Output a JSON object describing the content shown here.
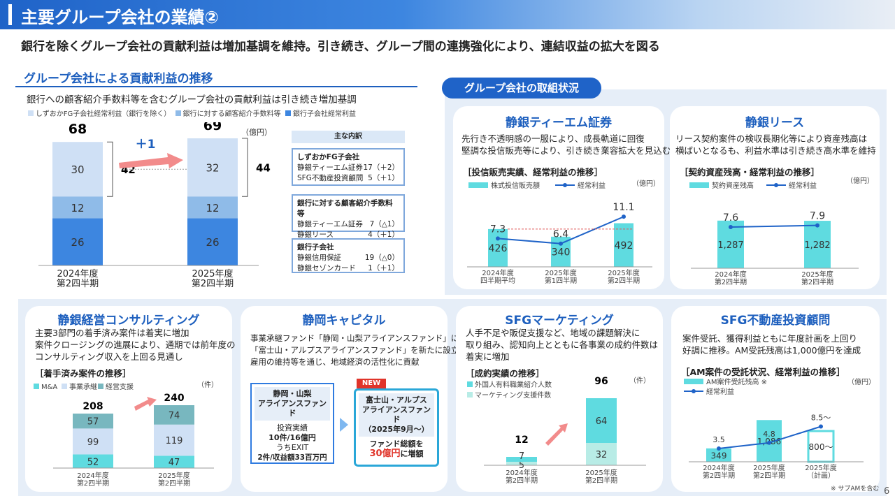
{
  "page": {
    "title": "主要グループ会社の業績②",
    "subtitle": "銀行を除くグループ会社の貢献利益は増加基調を維持。引き続き、グループ間の連携強化により、連結収益の拡大を図る",
    "page_number": "6"
  },
  "left": {
    "heading": "グループ会社による貢献利益の推移",
    "note": "銀行への顧客紹介手数料等を含むグループ会社の貢献利益は引き続き増加基調",
    "legend": [
      "しずおかFG子会社経常利益（銀行を除く）",
      "銀行に対する顧客紹介手数料等",
      "銀行子会社経常利益"
    ],
    "unit": "（億円）",
    "delta": "＋1",
    "breakdown_header": "主な内訳",
    "boxes": [
      {
        "title": "しずおかFG子会社",
        "rows": [
          [
            "静銀ティーエム証券",
            "17（＋2）"
          ],
          [
            "SFG不動産投資顧問",
            "5（＋1）"
          ]
        ]
      },
      {
        "title": "銀行に対する顧客紹介手数料等",
        "rows": [
          [
            "静銀ティーエム証券",
            "7（△1）"
          ],
          [
            "静銀リース",
            "4（＋1）"
          ]
        ]
      },
      {
        "title": "銀行子会社",
        "rows": [
          [
            "静銀信用保証",
            "19（△0）"
          ],
          [
            "静銀セゾンカード",
            "1（＋1）"
          ]
        ]
      }
    ]
  },
  "right_tag": "グループ会社の取組状況",
  "cards": {
    "tm": {
      "title": "静銀ティーエム証券",
      "text": [
        "先行き不透明感の一服により、成長軌道に回復",
        "堅調な投信販売等により、引き続き業容拡大を見込む"
      ],
      "chart_label": "［投信販売実績、経常利益の推移］",
      "unit": "（億円）",
      "legend": [
        "株式投信販売額",
        "経常利益"
      ]
    },
    "lease": {
      "title": "静銀リース",
      "text": [
        "リース契約案件の検収長期化等により資産残高は",
        "横ばいとなるも、利益水準は引き続き高水準を維持"
      ],
      "chart_label": "［契約資産残高・経常利益の推移］",
      "unit": "（億円）",
      "legend": [
        "契約資産残高",
        "経常利益"
      ]
    },
    "consult": {
      "title": "静銀経営コンサルティング",
      "text": [
        "主要3部門の着手済み案件は着実に増加",
        "案件クロージングの進展により、通期では前年度の",
        "コンサルティング収入を上回る見通し"
      ],
      "chart_label": "［着手済み案件の推移］",
      "unit": "（件）",
      "legend": [
        "M&A",
        "事業承継",
        "経営支援"
      ]
    },
    "capital": {
      "title": "静岡キャピタル",
      "text": [
        "事業承継ファンド「静岡・山梨アライアンスファンド」に続き",
        "「富士山・アルプスアライアンスファンド」を新たに設立",
        "雇用の維持等を通じ、地域経済の活性化に貢献"
      ],
      "fund1": {
        "name": "静岡・山梨\nアライアンスファンド",
        "l1": "投資実績",
        "l2": "10件/16億円",
        "l3": "うちEXIT",
        "l4": "2件/収益額33百万円"
      },
      "new_badge": "NEW",
      "fund2": {
        "name": "富士山・アルプス\nアライアンスファンド\n（2025年9月～）",
        "l1": "ファンド総額を",
        "l2a": "30億円",
        "l2b": "に増額"
      }
    },
    "mkt": {
      "title": "SFGマーケティング",
      "text": [
        "人手不足や販促支援など、地域の課題解決に",
        "取り組み、認知向上とともに各事業の成約件数は",
        "着実に増加"
      ],
      "chart_label": "［成約実績の推移］",
      "unit": "（件）",
      "legend": [
        "外国人有料職業紹介人数",
        "マーケティング支援件数"
      ]
    },
    "re": {
      "title": "SFG不動産投資顧問",
      "text": [
        "案件受託、獲得利益ともに年度計画を上回り",
        "好調に推移。AM受託残高は1,000億円を達成"
      ],
      "chart_label": "［AM案件の受託状況、経常利益の推移］",
      "unit": "（億円）",
      "legend": [
        "AM案件受託残高 ※",
        "経常利益"
      ],
      "footnote": "※ サブAMを含む"
    }
  },
  "chart_data": [
    {
      "id": "group",
      "type": "bar",
      "categories": [
        "2024年度\n第2四半期",
        "2025年度\n第2四半期"
      ],
      "series": [
        {
          "name": "銀行子会社経常利益",
          "values": [
            26,
            26
          ]
        },
        {
          "name": "銀行に対する顧客紹介手数料等",
          "values": [
            12,
            12
          ]
        },
        {
          "name": "しずおかFG子会社経常利益（銀行を除く）",
          "values": [
            30,
            32
          ]
        }
      ],
      "totals": [
        68,
        69
      ],
      "bracket": [
        42,
        44
      ]
    },
    {
      "id": "tm",
      "type": "bar",
      "categories": [
        "2024年度\n四半期平均",
        "2025年度\n第1四半期",
        "2025年度\n第2四半期"
      ],
      "series": [
        {
          "name": "株式投信販売額",
          "values": [
            426,
            340,
            492
          ]
        },
        {
          "name": "経常利益",
          "values": [
            7.3,
            6.4,
            11.1
          ]
        }
      ]
    },
    {
      "id": "lease",
      "type": "bar",
      "categories": [
        "2024年度\n第2四半期",
        "2025年度\n第2四半期"
      ],
      "series": [
        {
          "name": "契約資産残高",
          "values": [
            1287,
            1282
          ],
          "labels": [
            "1,287",
            "1,282"
          ]
        },
        {
          "name": "経常利益",
          "values": [
            7.6,
            7.9
          ]
        }
      ]
    },
    {
      "id": "consult",
      "type": "bar",
      "categories": [
        "2024年度\n第2四半期",
        "2025年度\n第2四半期"
      ],
      "series": [
        {
          "name": "M&A",
          "values": [
            52,
            47
          ]
        },
        {
          "name": "事業承継",
          "values": [
            99,
            119
          ]
        },
        {
          "name": "経営支援",
          "values": [
            57,
            74
          ]
        }
      ],
      "totals": [
        208,
        240
      ]
    },
    {
      "id": "mkt",
      "type": "bar",
      "categories": [
        "2024年度\n第2四半期",
        "2025年度\n第2四半期"
      ],
      "series": [
        {
          "name": "マーケティング支援件数",
          "values": [
            5,
            32
          ]
        },
        {
          "name": "外国人有料職業紹介人数",
          "values": [
            7,
            64
          ]
        }
      ],
      "totals": [
        12,
        96
      ]
    },
    {
      "id": "re",
      "type": "bar",
      "categories": [
        "2024年度\n第2四半期",
        "2025年度\n第2四半期",
        "2025年度\n（計画）"
      ],
      "series": [
        {
          "name": "AM案件受託残高",
          "values": [
            349,
            1086,
            800
          ],
          "labels": [
            "349",
            "1,086",
            "800～"
          ]
        },
        {
          "name": "経常利益",
          "values": [
            3.5,
            4.8,
            8.5
          ],
          "labels": [
            "3.5",
            "4.8",
            "8.5～"
          ]
        }
      ]
    }
  ]
}
